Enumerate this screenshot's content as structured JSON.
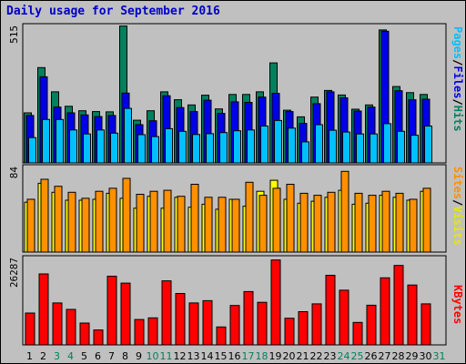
{
  "title": "Daily usage for September 2016",
  "colors": {
    "hits": "#00805c",
    "files": "#0000e8",
    "pages": "#00c0ff",
    "visits": "#ffff00",
    "sites": "#ff9000",
    "kbytes": "#ff0000",
    "weekend_day": "#00805c",
    "weekday_day": "#000000"
  },
  "chart_data": [
    {
      "type": "bar",
      "title": "Daily usage for September 2016",
      "categories": [
        "1",
        "2",
        "3",
        "4",
        "5",
        "6",
        "7",
        "8",
        "9",
        "10",
        "11",
        "12",
        "13",
        "14",
        "15",
        "16",
        "17",
        "18",
        "19",
        "20",
        "21",
        "22",
        "23",
        "24",
        "25",
        "26",
        "27",
        "28",
        "29",
        "30",
        "31"
      ],
      "weekend_days": [
        "3",
        "4",
        "10",
        "11",
        "17",
        "18",
        "24",
        "25",
        "31"
      ],
      "ymax_label": "515",
      "ylim": [
        0,
        515
      ],
      "legend": [
        "Pages",
        "Files",
        "Hits"
      ],
      "series": [
        {
          "name": "Hits",
          "values": [
            190,
            362,
            270,
            215,
            198,
            195,
            194,
            520,
            162,
            198,
            270,
            240,
            220,
            257,
            205,
            260,
            260,
            270,
            380,
            200,
            175,
            250,
            275,
            258,
            204,
            220,
            505,
            290,
            267,
            260,
            null
          ]
        },
        {
          "name": "Files",
          "values": [
            180,
            327,
            212,
            190,
            182,
            176,
            180,
            265,
            145,
            160,
            255,
            210,
            195,
            238,
            188,
            232,
            230,
            250,
            264,
            195,
            150,
            225,
            270,
            247,
            197,
            212,
            500,
            274,
            240,
            242,
            null
          ]
        },
        {
          "name": "Pages",
          "values": [
            96,
            165,
            165,
            125,
            110,
            125,
            113,
            207,
            107,
            100,
            130,
            120,
            108,
            111,
            115,
            122,
            125,
            140,
            161,
            132,
            80,
            145,
            124,
            117,
            110,
            110,
            149,
            120,
            105,
            140,
            null
          ]
        }
      ]
    },
    {
      "type": "bar",
      "categories": [
        "1",
        "2",
        "3",
        "4",
        "5",
        "6",
        "7",
        "8",
        "9",
        "10",
        "11",
        "12",
        "13",
        "14",
        "15",
        "16",
        "17",
        "18",
        "19",
        "20",
        "21",
        "22",
        "23",
        "24",
        "25",
        "26",
        "27",
        "28",
        "29",
        "30",
        "31"
      ],
      "ymax_label": "84",
      "ylim": [
        0,
        84
      ],
      "legend": [
        "Sites",
        "Visits"
      ],
      "series": [
        {
          "name": "Visits",
          "values": [
            50,
            69,
            60,
            52,
            52,
            53,
            59,
            54,
            44,
            56,
            44,
            55,
            45,
            48,
            43,
            53,
            46,
            61,
            72,
            53,
            49,
            51,
            55,
            62,
            48,
            49,
            57,
            55,
            52,
            61,
            null
          ]
        },
        {
          "name": "Sites",
          "values": [
            53,
            73,
            66,
            60,
            54,
            61,
            64,
            74,
            58,
            61,
            62,
            56,
            68,
            55,
            55,
            53,
            70,
            57,
            64,
            68,
            59,
            57,
            60,
            81,
            59,
            57,
            61,
            59,
            53,
            64,
            null
          ]
        }
      ]
    },
    {
      "type": "bar",
      "categories": [
        "1",
        "2",
        "3",
        "4",
        "5",
        "6",
        "7",
        "8",
        "9",
        "10",
        "11",
        "12",
        "13",
        "14",
        "15",
        "16",
        "17",
        "18",
        "19",
        "20",
        "21",
        "22",
        "23",
        "24",
        "25",
        "26",
        "27",
        "28",
        "29",
        "30",
        "31"
      ],
      "ymax_label": "26287",
      "ylim": [
        0,
        26287
      ],
      "legend": [
        "KBytes"
      ],
      "series": [
        {
          "name": "KBytes",
          "values": [
            9800,
            21800,
            12900,
            10900,
            6700,
            4600,
            21100,
            19000,
            7800,
            8300,
            19700,
            15800,
            12900,
            13600,
            5500,
            12100,
            16400,
            13100,
            26087,
            8200,
            10200,
            12600,
            21400,
            16800,
            6900,
            12200,
            20600,
            24400,
            18400,
            12600,
            null
          ]
        }
      ]
    }
  ]
}
